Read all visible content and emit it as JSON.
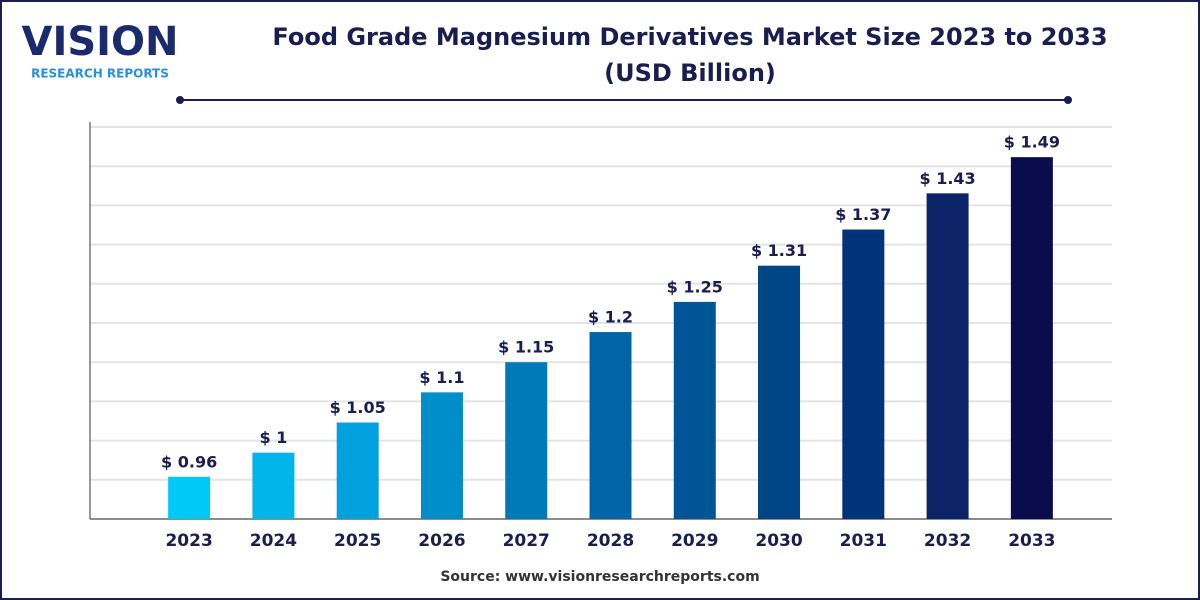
{
  "logo": {
    "name": "VISION",
    "tagline": "RESEARCH REPORTS"
  },
  "chart_data": {
    "type": "bar",
    "title_lines": [
      "Food Grade Magnesium Derivatives Market Size 2023 to 2033",
      "(USD Billion)"
    ],
    "categories": [
      "2023",
      "2024",
      "2025",
      "2026",
      "2027",
      "2028",
      "2029",
      "2030",
      "2031",
      "2032",
      "2033"
    ],
    "values": [
      0.96,
      1,
      1.05,
      1.1,
      1.15,
      1.2,
      1.25,
      1.31,
      1.37,
      1.43,
      1.49
    ],
    "value_labels": [
      "$ 0.96",
      "$ 1",
      "$ 1.05",
      "$ 1.1",
      "$ 1.15",
      "$ 1.2",
      "$ 1.25",
      "$ 1.31",
      "$ 1.37",
      "$ 1.43",
      "$ 1.49"
    ],
    "colors": [
      "#00c9f7",
      "#00b5ea",
      "#00a1dc",
      "#008ecb",
      "#0079b8",
      "#0065a6",
      "#005596",
      "#004586",
      "#00337a",
      "#0b2468",
      "#0a0d4d"
    ],
    "ylim": [
      0.89,
      1.54
    ],
    "yticks": [
      0.89,
      0.955,
      1.02,
      1.085,
      1.15,
      1.215,
      1.28,
      1.345,
      1.41,
      1.475,
      1.54
    ],
    "show_tick_labels": false,
    "grid": true,
    "source": "Source: www.visionresearchreports.com"
  }
}
